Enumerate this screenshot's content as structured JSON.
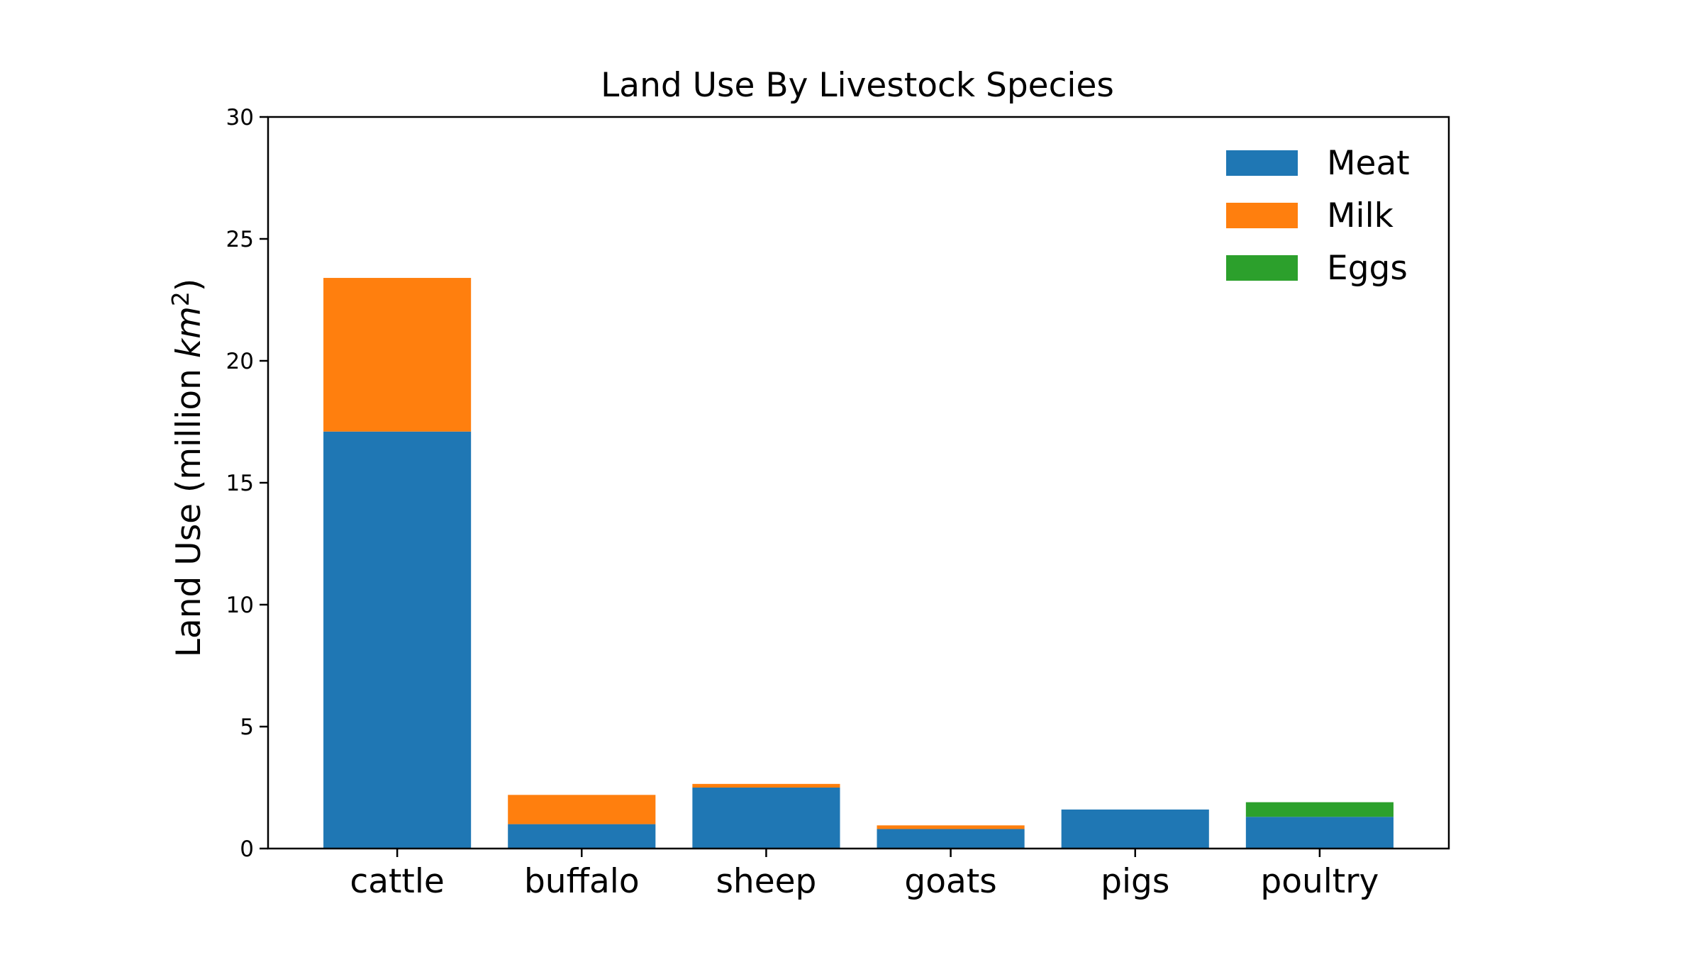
{
  "chart_data": {
    "type": "bar",
    "stacked": true,
    "title": "Land Use By Livestock Species",
    "ylabel": "Land Use (million km²)",
    "ylabel_parts": {
      "prefix": "Land Use (million ",
      "unit": "km",
      "exponent": "2",
      "suffix": ")"
    },
    "xlabel": "",
    "ylim": [
      0,
      30
    ],
    "yticks": [
      0,
      5,
      10,
      15,
      20,
      25,
      30
    ],
    "ytick_labels": [
      "0",
      "5",
      "10",
      "15",
      "20",
      "25",
      "30"
    ],
    "categories": [
      "cattle",
      "buffalo",
      "sheep",
      "goats",
      "pigs",
      "poultry"
    ],
    "series": [
      {
        "name": "Meat",
        "color": "#1f77b4",
        "values": [
          17.1,
          1.0,
          2.5,
          0.8,
          1.6,
          1.3
        ]
      },
      {
        "name": "Milk",
        "color": "#ff7f0e",
        "values": [
          6.3,
          1.2,
          0.15,
          0.15,
          0,
          0
        ]
      },
      {
        "name": "Eggs",
        "color": "#2ca02c",
        "values": [
          0,
          0,
          0,
          0,
          0,
          0.6
        ]
      }
    ],
    "grid": false,
    "legend_position": "top-right"
  }
}
